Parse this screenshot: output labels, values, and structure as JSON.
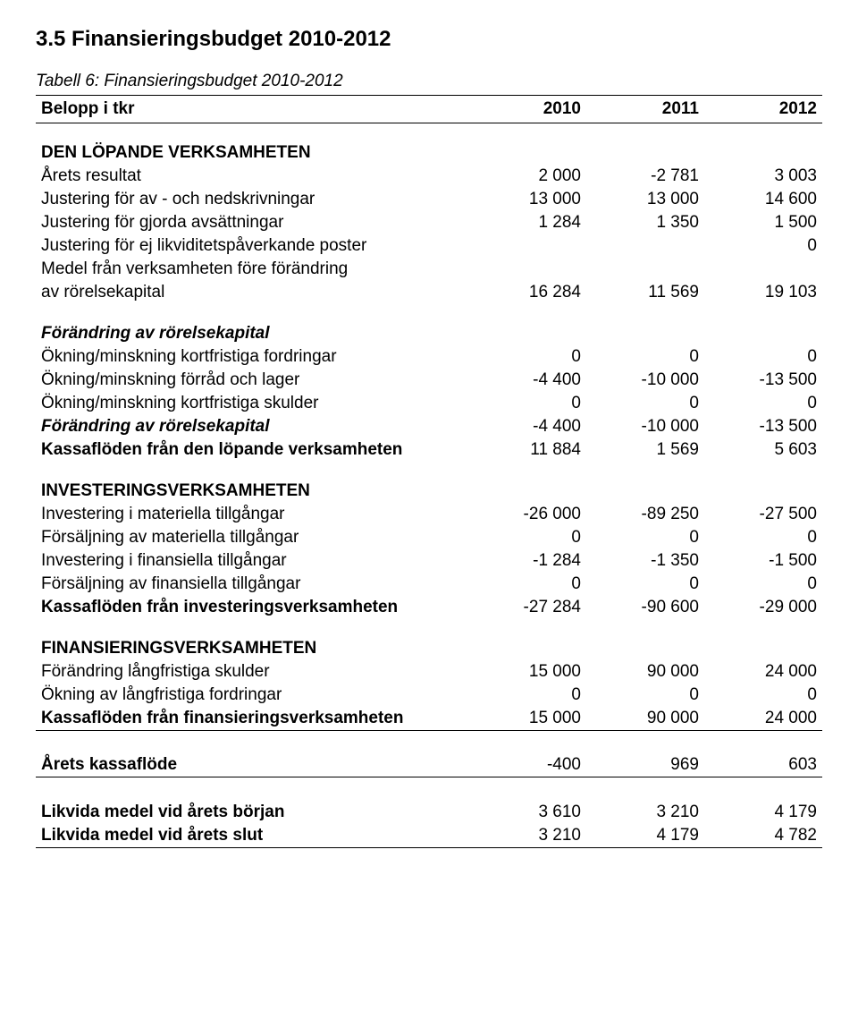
{
  "heading": "3.5 Finansieringsbudget 2010-2012",
  "caption": "Tabell 6: Finansieringsbudget 2010-2012",
  "header": {
    "c0": "Belopp i tkr",
    "c1": "2010",
    "c2": "2011",
    "c3": "2012"
  },
  "rows": {
    "sec1_title": "DEN LÖPANDE VERKSAMHETEN",
    "r1": {
      "l": "Årets resultat",
      "a": "2 000",
      "b": "-2 781",
      "c": "3 003"
    },
    "r2": {
      "l": "Justering för av - och nedskrivningar",
      "a": "13 000",
      "b": "13 000",
      "c": "14 600"
    },
    "r3": {
      "l": "Justering för gjorda avsättningar",
      "a": "1 284",
      "b": "1 350",
      "c": "1 500"
    },
    "r4": {
      "l": "Justering för ej likviditetspåverkande poster",
      "a": "",
      "b": "",
      "c": "0"
    },
    "r5a": {
      "l": "Medel från verksamheten före förändring"
    },
    "r5b": {
      "l": "av rörelsekapital",
      "a": "16 284",
      "b": "11 569",
      "c": "19 103"
    },
    "sub1_title": "Förändring av rörelsekapital",
    "r6": {
      "l": "Ökning/minskning kortfristiga fordringar",
      "a": "0",
      "b": "0",
      "c": "0"
    },
    "r7": {
      "l": "Ökning/minskning förråd och lager",
      "a": "-4 400",
      "b": "-10 000",
      "c": "-13 500"
    },
    "r8": {
      "l": "Ökning/minskning kortfristiga skulder",
      "a": "0",
      "b": "0",
      "c": "0"
    },
    "r9": {
      "l": "Förändring av rörelsekapital",
      "a": "-4 400",
      "b": "-10 000",
      "c": "-13 500"
    },
    "r10": {
      "l": "Kassaflöden från den löpande verksamheten",
      "a": "11 884",
      "b": "1 569",
      "c": "5 603"
    },
    "sec2_title": "INVESTERINGSVERKSAMHETEN",
    "r11": {
      "l": "Investering i materiella tillgångar",
      "a": "-26 000",
      "b": "-89 250",
      "c": "-27 500"
    },
    "r12": {
      "l": "Försäljning av materiella tillgångar",
      "a": "0",
      "b": "0",
      "c": "0"
    },
    "r13": {
      "l": "Investering i finansiella tillgångar",
      "a": "-1 284",
      "b": "-1 350",
      "c": "-1 500"
    },
    "r14": {
      "l": "Försäljning av finansiella tillgångar",
      "a": "0",
      "b": "0",
      "c": "0"
    },
    "r15": {
      "l": "Kassaflöden från investeringsverksamheten",
      "a": "-27 284",
      "b": "-90 600",
      "c": "-29 000"
    },
    "sec3_title": "FINANSIERINGSVERKSAMHETEN",
    "r16": {
      "l": "Förändring långfristiga skulder",
      "a": "15 000",
      "b": "90 000",
      "c": "24 000"
    },
    "r17": {
      "l": "Ökning av långfristiga fordringar",
      "a": "0",
      "b": "0",
      "c": "0"
    },
    "r18": {
      "l": "Kassaflöden från finansieringsverksamheten",
      "a": "15 000",
      "b": "90 000",
      "c": "24 000"
    },
    "r19": {
      "l": "Årets kassaflöde",
      "a": "-400",
      "b": "969",
      "c": "603"
    },
    "r20": {
      "l": "Likvida medel vid årets början",
      "a": "3 610",
      "b": "3 210",
      "c": "4 179"
    },
    "r21": {
      "l": "Likvida medel vid årets slut",
      "a": "3 210",
      "b": "4 179",
      "c": "4 782"
    }
  }
}
